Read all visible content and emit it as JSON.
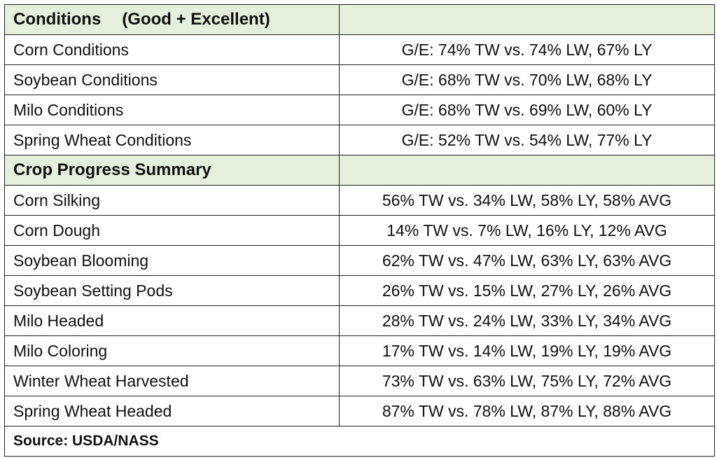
{
  "conditions": {
    "title": "Conditions",
    "subtitle": "(Good + Excellent)",
    "rows": [
      {
        "label": "Corn Conditions",
        "value": "G/E: 74% TW vs. 74% LW, 67% LY"
      },
      {
        "label": "Soybean Conditions",
        "value": "G/E: 68% TW vs. 70% LW, 68% LY"
      },
      {
        "label": "Milo Conditions",
        "value": "G/E: 68% TW vs. 69% LW, 60% LY"
      },
      {
        "label": "Spring Wheat Conditions",
        "value": "G/E: 52% TW vs. 54% LW, 77% LY"
      }
    ]
  },
  "progress": {
    "title": "Crop Progress Summary",
    "rows": [
      {
        "label": "Corn Silking",
        "value": "56% TW vs. 34% LW, 58% LY, 58% AVG"
      },
      {
        "label": "Corn Dough",
        "value": "14% TW vs. 7% LW, 16% LY, 12% AVG"
      },
      {
        "label": "Soybean Blooming",
        "value": "62% TW vs. 47% LW, 63% LY, 63% AVG"
      },
      {
        "label": "Soybean Setting Pods",
        "value": "26% TW vs. 15% LW, 27% LY, 26% AVG"
      },
      {
        "label": "Milo Headed",
        "value": "28% TW vs. 24% LW, 33% LY, 34% AVG"
      },
      {
        "label": "Milo Coloring",
        "value": "17% TW vs. 14% LW, 19% LY, 19% AVG"
      },
      {
        "label": "Winter Wheat Harvested",
        "value": "73% TW vs. 63% LW, 75% LY, 72% AVG"
      },
      {
        "label": "Spring Wheat Headed",
        "value": "87% TW vs. 78% LW, 87% LY, 88% AVG"
      }
    ]
  },
  "source": "Source: USDA/NASS",
  "colors": {
    "header_background": "#e4efdc",
    "border": "#222222",
    "text": "#111111"
  }
}
